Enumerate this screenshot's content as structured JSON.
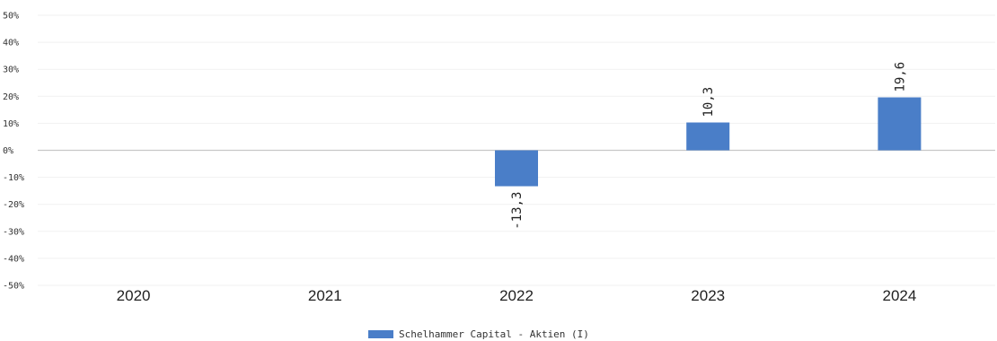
{
  "chart_data": {
    "type": "bar",
    "categories": [
      "2020",
      "2021",
      "2022",
      "2023",
      "2024"
    ],
    "series": [
      {
        "name": "Schelhammer Capital - Aktien (I)",
        "values": [
          null,
          null,
          -13.3,
          10.3,
          19.6
        ],
        "labels": [
          "",
          "",
          "-13,3",
          "10,3",
          "19,6"
        ],
        "color": "#4a7ec8"
      }
    ],
    "ylim": [
      -50,
      50
    ],
    "yticks": [
      50,
      40,
      30,
      20,
      10,
      0,
      -10,
      -20,
      -30,
      -40,
      -50
    ],
    "ytick_labels": [
      "50%",
      "40%",
      "30%",
      "20%",
      "10%",
      "0%",
      "-10%",
      "-20%",
      "-30%",
      "-40%",
      "-50%"
    ],
    "grid": true,
    "legend_position": "bottom-center"
  }
}
